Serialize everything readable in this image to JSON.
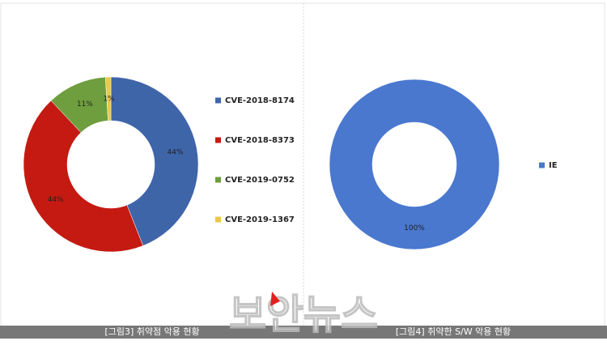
{
  "chart_data": [
    {
      "type": "donut",
      "categories": [
        "CVE-2018-8174",
        "CVE-2018-8373",
        "CVE-2019-0752",
        "CVE-2019-1367"
      ],
      "values": [
        44,
        44,
        11,
        1
      ],
      "value_labels": [
        "44%",
        "44%",
        "11%",
        "1%"
      ],
      "colors": [
        "#3f65a9",
        "#c41a12",
        "#6f9e3e",
        "#e9c84a"
      ],
      "legend": "right",
      "caption": "[그림3] 취약점 악용 현황"
    },
    {
      "type": "donut",
      "categories": [
        "IE"
      ],
      "values": [
        100
      ],
      "value_labels": [
        "100%"
      ],
      "colors": [
        "#4a78cf"
      ],
      "legend": "right",
      "caption": "[그림4] 취약한 S/W 악용 현황"
    }
  ],
  "watermark": "보안뉴스"
}
